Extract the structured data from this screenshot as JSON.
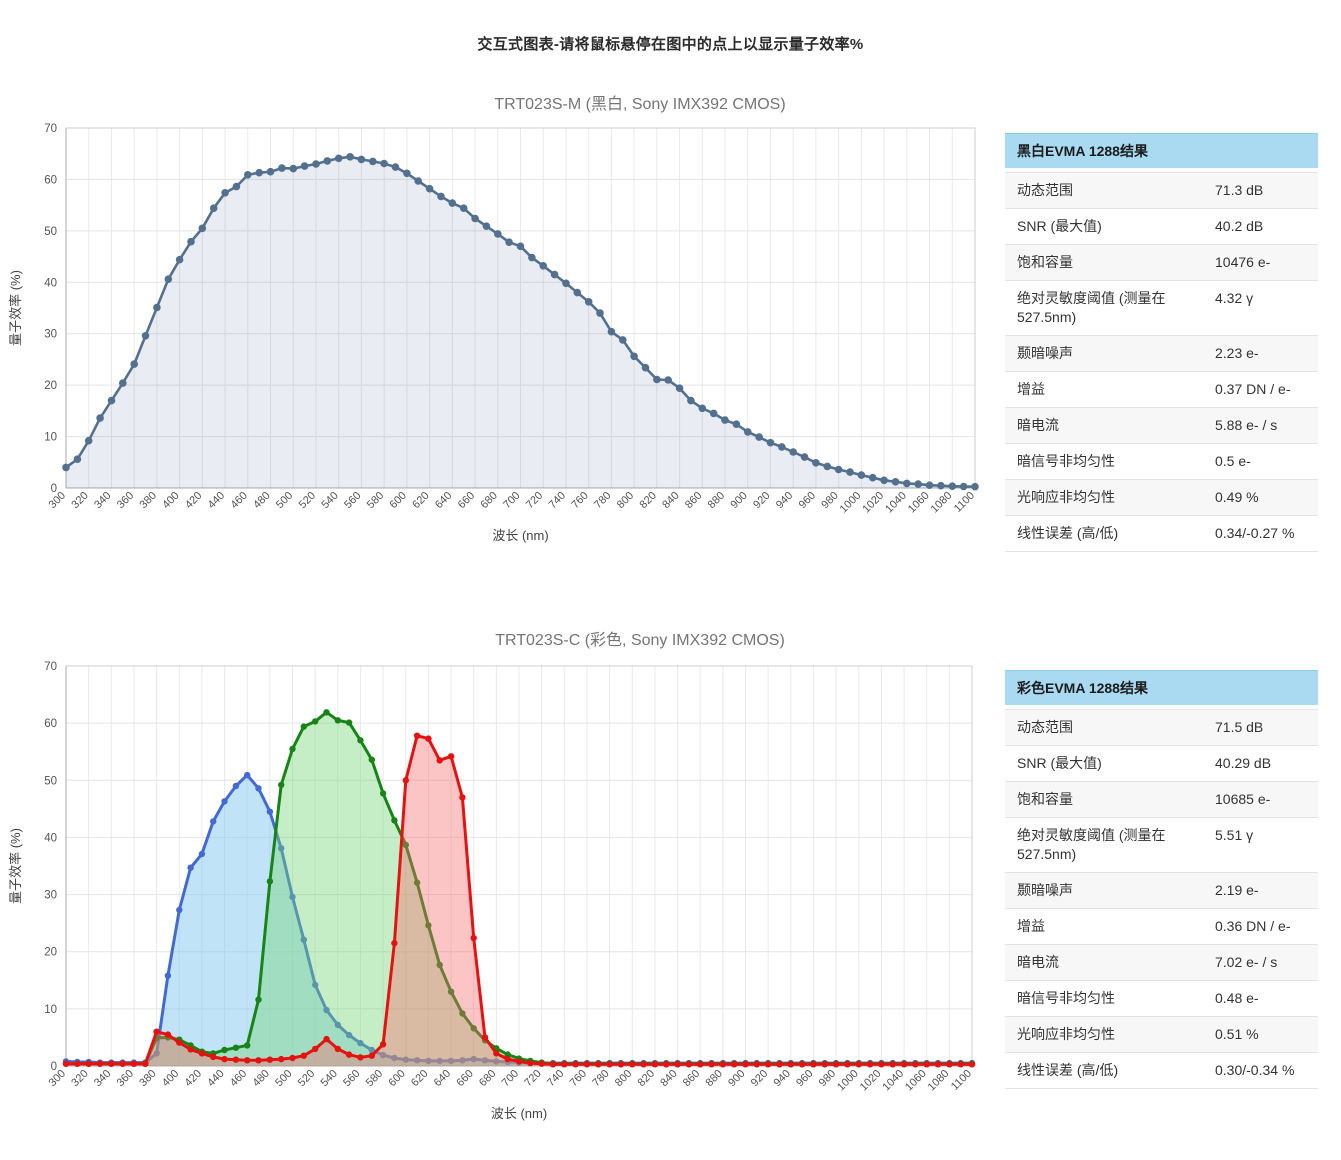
{
  "page": {
    "title": "交互式图表-请将鼠标悬停在图中的点上以显示量子效率%"
  },
  "colors": {
    "table_header_bg": "#a9daf1",
    "mono_line": "#53718e",
    "blue_line": "#4468d4",
    "green_line": "#178417",
    "red_line": "#e51212",
    "axis_text": "#545454",
    "title_text": "#757575"
  },
  "chart_data": [
    {
      "type": "area",
      "title": "TRT023S-M (黑白, Sony IMX392 CMOS)",
      "xlabel": "波长 (nm)",
      "ylabel": "量子效率 (%)",
      "xlim": [
        300,
        1100
      ],
      "ylim": [
        0,
        70
      ],
      "x_step": 10,
      "x_tick_step": 20,
      "y_tick_step": 10,
      "grid": true,
      "legend": "none",
      "series": [
        {
          "name": "mono-qe",
          "color": "#53718e",
          "fill": "rgba(100,118,160,0.14)",
          "dot_radius": 3.8,
          "values": [
            4.0,
            5.6,
            9.2,
            13.6,
            17.0,
            20.4,
            24.1,
            29.6,
            35.1,
            40.6,
            44.4,
            47.9,
            50.5,
            54.4,
            57.4,
            58.6,
            60.9,
            61.3,
            61.5,
            62.2,
            62.1,
            62.6,
            63.0,
            63.6,
            64.1,
            64.4,
            63.9,
            63.5,
            63.1,
            62.4,
            61.2,
            59.7,
            58.2,
            56.7,
            55.4,
            54.4,
            52.4,
            50.9,
            49.4,
            47.8,
            47.0,
            44.8,
            43.2,
            41.5,
            39.8,
            38.0,
            36.2,
            34.0,
            30.4,
            28.8,
            25.6,
            23.4,
            21.1,
            21.0,
            19.4,
            17.0,
            15.5,
            14.5,
            13.2,
            12.4,
            10.9,
            9.9,
            8.8,
            8.0,
            7.0,
            6.0,
            4.9,
            4.2,
            3.6,
            3.1,
            2.5,
            2.0,
            1.5,
            1.2,
            0.9,
            0.75,
            0.55,
            0.45,
            0.35,
            0.3,
            0.25
          ]
        }
      ]
    },
    {
      "type": "area",
      "title": "TRT023S-C (彩色, Sony IMX392 CMOS)",
      "xlabel": "波长 (nm)",
      "ylabel": "量子效率 (%)",
      "xlim": [
        300,
        1100
      ],
      "ylim": [
        0,
        70
      ],
      "x_step": 10,
      "x_tick_step": 20,
      "y_tick_step": 10,
      "grid": true,
      "legend": "none",
      "series": [
        {
          "name": "blue-channel-qe",
          "color": "#4468d4",
          "fill": "rgba(130,200,240,0.50)",
          "dot_radius": 3.2,
          "values": [
            0.8,
            0.7,
            0.7,
            0.6,
            0.6,
            0.6,
            0.6,
            0.6,
            2.2,
            15.8,
            27.3,
            34.7,
            37.1,
            42.8,
            46.3,
            49.0,
            50.9,
            48.6,
            44.5,
            38.1,
            29.6,
            22.1,
            14.2,
            9.8,
            7.2,
            5.4,
            4.0,
            2.8,
            1.9,
            1.4,
            1.1,
            1.0,
            0.9,
            0.9,
            0.9,
            1.0,
            1.2,
            1.0,
            0.8,
            0.7,
            0.6,
            0.5,
            0.5,
            0.5,
            0.5,
            0.5,
            0.5,
            0.5,
            0.5,
            0.5,
            0.5,
            0.5,
            0.5,
            0.5,
            0.5,
            0.5,
            0.5,
            0.5,
            0.5,
            0.5,
            0.5,
            0.5,
            0.5,
            0.5,
            0.5,
            0.5,
            0.5,
            0.5,
            0.5,
            0.5,
            0.5,
            0.5,
            0.5,
            0.5,
            0.5,
            0.5,
            0.5,
            0.5,
            0.5,
            0.5,
            0.5
          ]
        },
        {
          "name": "green-channel-qe",
          "color": "#178417",
          "fill": "rgba(120,215,120,0.42)",
          "dot_radius": 3.2,
          "values": [
            0.4,
            0.4,
            0.4,
            0.4,
            0.4,
            0.4,
            0.4,
            0.4,
            4.9,
            5.0,
            4.6,
            3.6,
            2.5,
            2.2,
            2.8,
            3.2,
            3.6,
            11.6,
            32.3,
            49.2,
            55.5,
            59.4,
            60.3,
            61.9,
            60.5,
            60.1,
            57.0,
            53.6,
            47.7,
            43.0,
            38.7,
            32.1,
            24.6,
            17.7,
            13.0,
            9.2,
            6.6,
            4.5,
            3.1,
            2.0,
            1.3,
            0.9,
            0.6,
            0.4,
            0.4,
            0.4,
            0.4,
            0.4,
            0.4,
            0.4,
            0.4,
            0.4,
            0.4,
            0.4,
            0.4,
            0.4,
            0.4,
            0.4,
            0.4,
            0.4,
            0.4,
            0.4,
            0.4,
            0.4,
            0.4,
            0.4,
            0.4,
            0.4,
            0.4,
            0.4,
            0.4,
            0.4,
            0.4,
            0.4,
            0.4,
            0.4,
            0.4,
            0.4,
            0.4,
            0.4,
            0.4
          ]
        },
        {
          "name": "red-channel-qe",
          "color": "#e51212",
          "fill": "rgba(245,110,110,0.40)",
          "dot_radius": 3.2,
          "values": [
            0.4,
            0.4,
            0.4,
            0.4,
            0.4,
            0.4,
            0.4,
            0.4,
            6.0,
            5.5,
            4.1,
            2.9,
            2.2,
            1.6,
            1.2,
            1.1,
            1.0,
            1.0,
            1.1,
            1.2,
            1.4,
            1.8,
            3.0,
            4.7,
            3.0,
            2.0,
            1.5,
            1.8,
            3.8,
            21.5,
            50.0,
            57.8,
            57.3,
            53.5,
            54.2,
            47.0,
            22.4,
            5.0,
            2.2,
            1.2,
            0.8,
            0.5,
            0.4,
            0.3,
            0.3,
            0.3,
            0.3,
            0.3,
            0.3,
            0.3,
            0.3,
            0.3,
            0.3,
            0.3,
            0.3,
            0.3,
            0.3,
            0.3,
            0.3,
            0.3,
            0.3,
            0.3,
            0.3,
            0.3,
            0.3,
            0.3,
            0.3,
            0.3,
            0.3,
            0.3,
            0.3,
            0.3,
            0.3,
            0.3,
            0.3,
            0.3,
            0.3,
            0.3,
            0.3,
            0.3,
            0.3
          ]
        }
      ]
    }
  ],
  "tables": [
    {
      "header": "黑白EVMA 1288结果",
      "rows": [
        [
          "动态范围",
          "71.3 dB"
        ],
        [
          "SNR (最大值)",
          "40.2 dB"
        ],
        [
          "饱和容量",
          "10476 e-"
        ],
        [
          "绝对灵敏度阈值 (测量在 527.5nm)",
          "4.32 γ"
        ],
        [
          "颞暗噪声",
          "2.23 e-"
        ],
        [
          "增益",
          "0.37 DN / e-"
        ],
        [
          "暗电流",
          "5.88 e- / s"
        ],
        [
          "暗信号非均匀性",
          "0.5 e-"
        ],
        [
          "光响应非均匀性",
          "0.49 %"
        ],
        [
          "线性误差 (高/低)",
          "0.34/-0.27 %"
        ]
      ]
    },
    {
      "header": "彩色EVMA 1288结果",
      "rows": [
        [
          "动态范围",
          "71.5 dB"
        ],
        [
          "SNR (最大值)",
          "40.29 dB"
        ],
        [
          "饱和容量",
          "10685 e-"
        ],
        [
          "绝对灵敏度阈值 (测量在 527.5nm)",
          "5.51 γ"
        ],
        [
          "颞暗噪声",
          "2.19 e-"
        ],
        [
          "增益",
          "0.36 DN / e-"
        ],
        [
          "暗电流",
          "7.02 e- / s"
        ],
        [
          "暗信号非均匀性",
          "0.48 e-"
        ],
        [
          "光响应非均匀性",
          "0.51 %"
        ],
        [
          "线性误差 (高/低)",
          "0.30/-0.34 %"
        ]
      ]
    }
  ]
}
